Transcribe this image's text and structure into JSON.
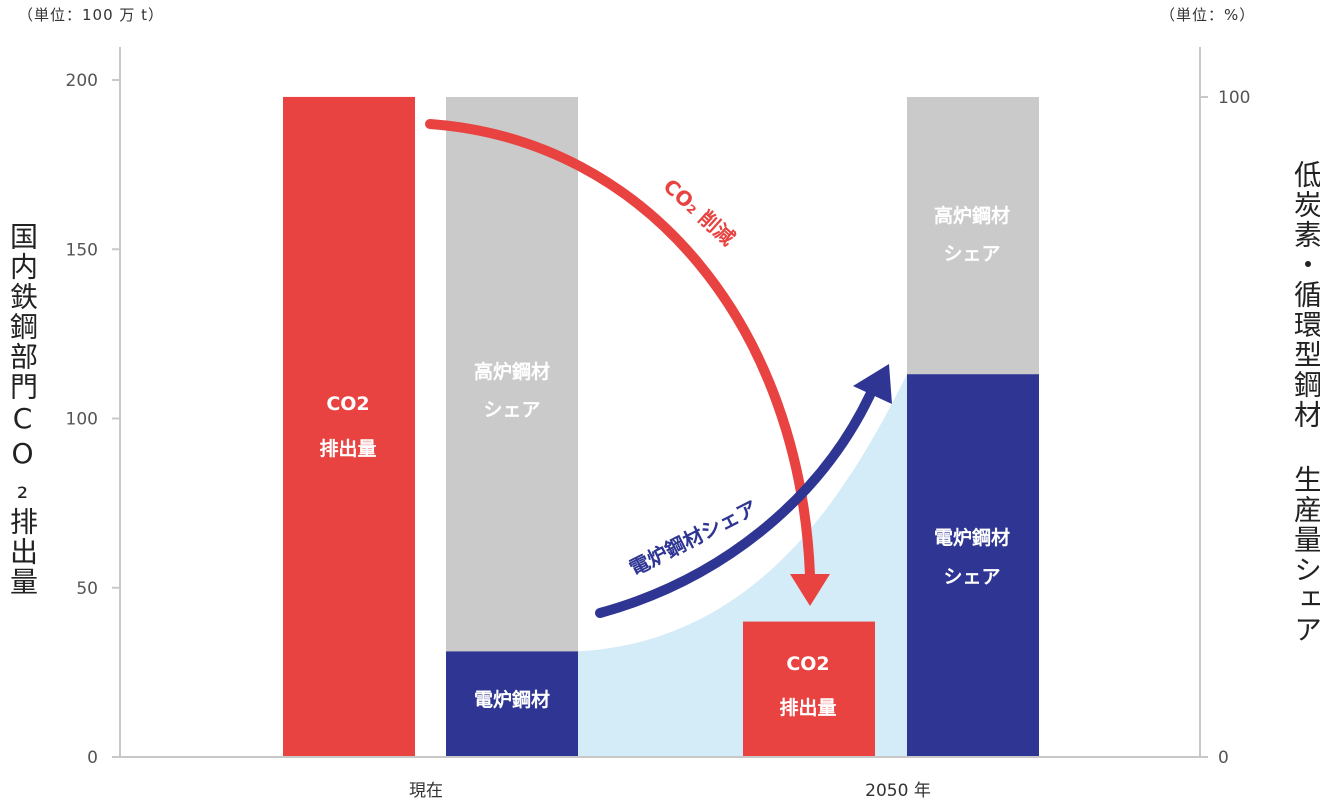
{
  "chart_data": {
    "type": "bar",
    "left_axis": {
      "unit_label": "（単位：100 万 t）",
      "label": "国内鉄鋼部門CO₂排出量",
      "ylim": [
        0,
        200
      ],
      "ticks": [
        "0",
        "50",
        "100",
        "150",
        "200"
      ]
    },
    "right_axis": {
      "unit_label": "（単位：%）",
      "label": "低炭素・循環型鋼材 生産量シェア",
      "ylim": [
        0,
        100
      ],
      "ticks": [
        "0",
        "100"
      ]
    },
    "categories": [
      "現在",
      "2050 年"
    ],
    "emissions": {
      "label_line1": "CO2",
      "label_line2": "排出量",
      "values": [
        195,
        40
      ],
      "color": "#e84340"
    },
    "share": {
      "bof": {
        "label_line1": "高炉鋼材",
        "label_line2": "シェア",
        "values": [
          84,
          42
        ],
        "color": "#cacaca"
      },
      "eaf": {
        "label_now": "電炉鋼材",
        "label_line1": "電炉鋼材",
        "label_line2": "シェア",
        "values": [
          16,
          58
        ],
        "color": "#2e3593"
      }
    },
    "annotations": {
      "reduction_arrow": "CO₂ 削減",
      "reduction_color": "#e84340",
      "eaf_arrow": "電炉鋼材シェア",
      "eaf_color": "#2e3593",
      "area_color": "#d4ebf8"
    },
    "grid": false
  }
}
